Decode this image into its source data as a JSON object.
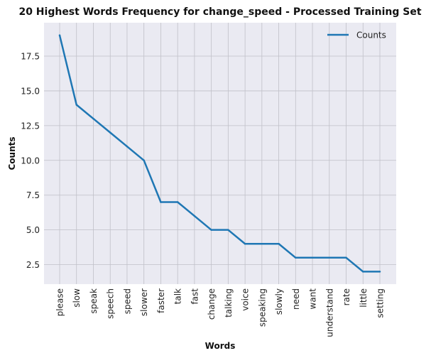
{
  "chart_data": {
    "type": "line",
    "title": "20 Highest Words Frequency for change_speed - Processed Training Set",
    "xlabel": "Words",
    "ylabel": "Counts",
    "categories": [
      "please",
      "slow",
      "speak",
      "speech",
      "speed",
      "slower",
      "faster",
      "talk",
      "fast",
      "change",
      "talking",
      "voice",
      "speaking",
      "slowly",
      "need",
      "want",
      "understand",
      "rate",
      "little",
      "setting"
    ],
    "series": [
      {
        "name": "Counts",
        "values": [
          19,
          14,
          13,
          12,
          11,
          10,
          7,
          7,
          6,
          5,
          5,
          4,
          4,
          4,
          3,
          3,
          3,
          3,
          2,
          2
        ]
      }
    ],
    "ylim": [
      1.1,
      19.9
    ],
    "yticks": [
      2.5,
      5.0,
      7.5,
      10.0,
      12.5,
      15.0,
      17.5
    ],
    "ytick_labels": [
      "2.5",
      "5.0",
      "7.5",
      "10.0",
      "12.5",
      "15.0",
      "17.5"
    ],
    "grid": true,
    "legend_position": "top-right",
    "colors": {
      "line": "#1f77b4",
      "plot_background": "#eaeaf2",
      "grid": "#c0c0c8"
    }
  }
}
